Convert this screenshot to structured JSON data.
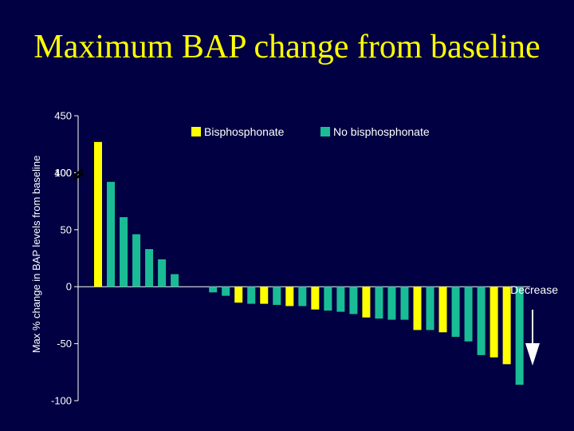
{
  "title": "Maximum BAP change from baseline",
  "colors": {
    "background": "#000042",
    "title": "#ffff00",
    "bisphosphonate": "#ffff00",
    "no_bisphosphonate": "#1abc96",
    "text": "#ffffff"
  },
  "chart_data": {
    "type": "bar",
    "title": "Maximum BAP change from baseline",
    "xlabel": "",
    "ylabel": "Max % change in BAP levels from baseline",
    "ylim": [
      -100,
      450
    ],
    "axis_break": {
      "from": 100,
      "to": 400
    },
    "yticks": [
      -100,
      -50,
      0,
      50,
      100,
      400,
      450
    ],
    "ytick_labels": [
      "-100",
      "-50",
      "0",
      "50",
      "100",
      "400",
      "450"
    ],
    "grid": false,
    "legend_position": "top-right",
    "legend": [
      {
        "label": "Bisphosphonate",
        "series": "bisphosphonate"
      },
      {
        "label": "No bisphosphonate",
        "series": "no_bisphosphonate"
      }
    ],
    "bars": [
      {
        "value": 427,
        "series": "bisphosphonate"
      },
      {
        "value": 92,
        "series": "no_bisphosphonate"
      },
      {
        "value": 61,
        "series": "no_bisphosphonate"
      },
      {
        "value": 46,
        "series": "no_bisphosphonate"
      },
      {
        "value": 33,
        "series": "no_bisphosphonate"
      },
      {
        "value": 24,
        "series": "no_bisphosphonate"
      },
      {
        "value": 11,
        "series": "no_bisphosphonate"
      },
      {
        "value": 0,
        "series": "no_bisphosphonate"
      },
      {
        "value": 0,
        "series": "no_bisphosphonate"
      },
      {
        "value": -5,
        "series": "no_bisphosphonate"
      },
      {
        "value": -8,
        "series": "no_bisphosphonate"
      },
      {
        "value": -14,
        "series": "bisphosphonate"
      },
      {
        "value": -15,
        "series": "no_bisphosphonate"
      },
      {
        "value": -15,
        "series": "bisphosphonate"
      },
      {
        "value": -16,
        "series": "no_bisphosphonate"
      },
      {
        "value": -17,
        "series": "bisphosphonate"
      },
      {
        "value": -17,
        "series": "no_bisphosphonate"
      },
      {
        "value": -20,
        "series": "bisphosphonate"
      },
      {
        "value": -21,
        "series": "no_bisphosphonate"
      },
      {
        "value": -22,
        "series": "no_bisphosphonate"
      },
      {
        "value": -24,
        "series": "no_bisphosphonate"
      },
      {
        "value": -27,
        "series": "bisphosphonate"
      },
      {
        "value": -28,
        "series": "no_bisphosphonate"
      },
      {
        "value": -29,
        "series": "no_bisphosphonate"
      },
      {
        "value": -29,
        "series": "no_bisphosphonate"
      },
      {
        "value": -38,
        "series": "bisphosphonate"
      },
      {
        "value": -38,
        "series": "no_bisphosphonate"
      },
      {
        "value": -40,
        "series": "bisphosphonate"
      },
      {
        "value": -44,
        "series": "no_bisphosphonate"
      },
      {
        "value": -48,
        "series": "no_bisphosphonate"
      },
      {
        "value": -60,
        "series": "no_bisphosphonate"
      },
      {
        "value": -62,
        "series": "bisphosphonate"
      },
      {
        "value": -68,
        "series": "bisphosphonate"
      },
      {
        "value": -86,
        "series": "no_bisphosphonate"
      }
    ],
    "annotation": {
      "text": "Decrease",
      "arrow_direction": "down"
    }
  }
}
